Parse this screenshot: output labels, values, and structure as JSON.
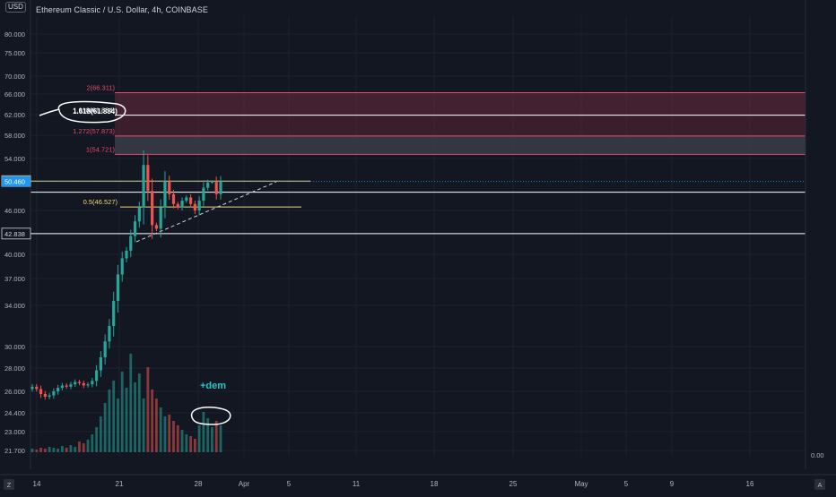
{
  "header": {
    "symbol_title": "Ethereum Classic / U.S. Dollar, 4h, COINBASE",
    "currency": "USD"
  },
  "price_axis": {
    "ticks": [
      "80.000",
      "75.000",
      "70.000",
      "66.000",
      "62.000",
      "58.000",
      "54.000",
      "46.000",
      "40.000",
      "37.000",
      "34.000",
      "30.000",
      "28.000",
      "26.000",
      "24.400",
      "23.000",
      "21.700"
    ],
    "current_price": "50.460",
    "marked_level": "50.523",
    "support_level": "42.838",
    "volume_label": "0.00"
  },
  "time_axis": {
    "labels": [
      "14",
      "21",
      "28",
      "Apr",
      "5",
      "11",
      "18",
      "25",
      "May",
      "5",
      "9",
      "16"
    ],
    "left_button": "Z",
    "right_button": "A"
  },
  "fib_levels": [
    {
      "label": "2(66.311)",
      "color": "#e84a6a"
    },
    {
      "label": "1.618(61.884)",
      "color": "#ffffff"
    },
    {
      "label": "1.272(57.873)",
      "color": "#e84a6a"
    },
    {
      "label": "1(54.721)",
      "color": "#e84a6a"
    },
    {
      "label": "0.5(46.527)",
      "color": "#f0d879"
    }
  ],
  "annotations": {
    "dem_label": "+dem"
  },
  "colors": {
    "background": "#131722",
    "candle_up": "#26a69a",
    "candle_down": "#ef5350",
    "current_price_badge": "#2196f3",
    "dem_text": "#26c6c6"
  },
  "chart_data": {
    "type": "candlestick",
    "title": "Ethereum Classic / U.S. Dollar, 4h, COINBASE",
    "price_axis_ticks": [
      80,
      75,
      70,
      66,
      62,
      58,
      54,
      46,
      40,
      37,
      34,
      30,
      28,
      26,
      24.4,
      23,
      21.7
    ],
    "current_price": 50.46,
    "horizontal_levels": [
      50.523,
      50.46,
      42.838
    ],
    "fib_levels": [
      {
        "ratio": 2,
        "price": 66.311
      },
      {
        "ratio": 1.618,
        "price": 61.884
      },
      {
        "ratio": 1.272,
        "price": 57.873
      },
      {
        "ratio": 1,
        "price": 54.721
      },
      {
        "ratio": 0.5,
        "price": 46.527
      }
    ],
    "time_labels": [
      "14",
      "21",
      "28",
      "Apr",
      "5",
      "11",
      "18",
      "25",
      "May",
      "5",
      "9",
      "16"
    ],
    "close_trace": [
      26.4,
      26.2,
      25.8,
      25.6,
      25.7,
      26.0,
      26.3,
      26.5,
      26.4,
      26.6,
      26.8,
      26.7,
      26.5,
      26.6,
      26.9,
      27.8,
      29.0,
      30.5,
      32.0,
      34.5,
      37.5,
      39.5,
      40.5,
      42.5,
      44.5,
      46.5,
      53.0,
      49.0,
      44.0,
      43.5,
      46.5,
      50.5,
      48.5,
      47.0,
      46.5,
      47.5,
      48.0,
      47.0,
      46.0,
      47.5,
      49.5,
      50.3,
      50.4,
      48.5,
      50.46
    ],
    "volume_shown": true,
    "grid": true
  }
}
